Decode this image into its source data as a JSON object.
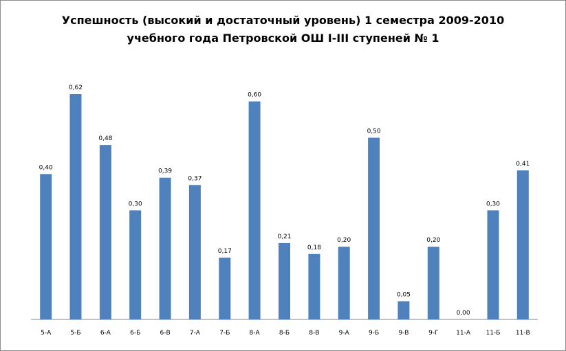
{
  "chart_data": {
    "type": "bar",
    "title_line1": "Успешность (высокий и достаточный уровень) 1 семестра 2009-2010",
    "title_line2": "учебного года Петровской ОШ І-ІІІ ступеней № 1",
    "categories": [
      "5-А",
      "5-Б",
      "6-А",
      "6-Б",
      "6-В",
      "7-А",
      "7-Б",
      "8-А",
      "8-Б",
      "8-В",
      "9-А",
      "9-Б",
      "9-В",
      "9-Г",
      "11-А",
      "11-Б",
      "11-В"
    ],
    "values": [
      0.4,
      0.62,
      0.48,
      0.3,
      0.39,
      0.37,
      0.17,
      0.6,
      0.21,
      0.18,
      0.2,
      0.5,
      0.05,
      0.2,
      0.0,
      0.3,
      0.41
    ],
    "value_labels": [
      "0,40",
      "0,62",
      "0,48",
      "0,30",
      "0,39",
      "0,37",
      "0,17",
      "0,60",
      "0,21",
      "0,18",
      "0,20",
      "0,50",
      "0,05",
      "0,20",
      "0,00",
      "0,30",
      "0,41"
    ],
    "ylim": [
      0,
      0.62
    ],
    "grid": false,
    "legend": "none",
    "bar_color": "#4f81bd"
  }
}
